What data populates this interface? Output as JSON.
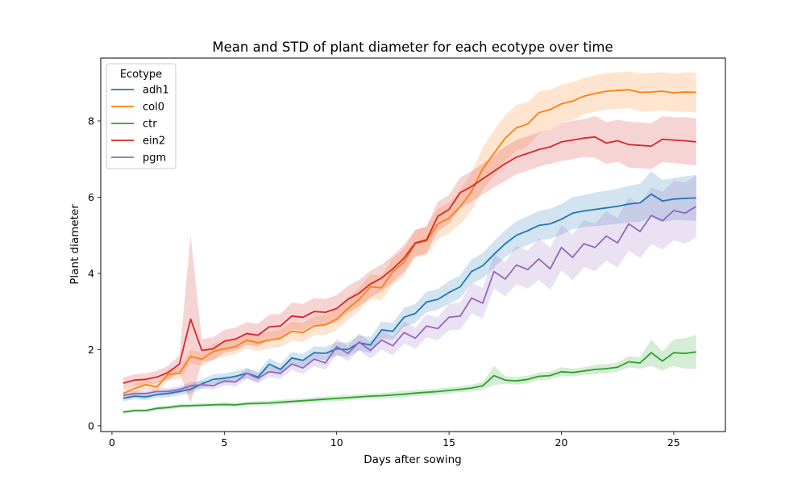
{
  "chart_data": {
    "type": "line",
    "title": "Mean and STD of plant diameter for each ecotype over time",
    "xlabel": "Days after sowing",
    "ylabel": "Plant diameter",
    "xlim": [
      -0.5,
      27.3
    ],
    "ylim": [
      -0.15,
      9.65
    ],
    "x_ticks": [
      0,
      5,
      10,
      15,
      20,
      25
    ],
    "y_ticks": [
      0,
      2,
      4,
      6,
      8
    ],
    "grid": false,
    "legend": {
      "title": "Ecotype",
      "placement": "top-left"
    },
    "x": [
      0.5,
      1,
      1.5,
      2,
      2.5,
      3,
      3.5,
      4,
      4.5,
      5,
      5.5,
      6,
      6.5,
      7,
      7.5,
      8,
      8.5,
      9,
      9.5,
      10,
      10.5,
      11,
      11.5,
      12,
      12.5,
      13,
      13.5,
      14,
      14.5,
      15,
      15.5,
      16,
      16.5,
      17,
      17.5,
      18,
      18.5,
      19,
      19.5,
      20,
      20.5,
      21,
      21.5,
      22,
      22.5,
      23,
      23.5,
      24,
      24.5,
      25,
      25.5,
      26
    ],
    "series": [
      {
        "name": "adh1",
        "color": "#1f77b4",
        "values": [
          0.72,
          0.78,
          0.76,
          0.82,
          0.85,
          0.9,
          0.96,
          1.1,
          1.22,
          1.25,
          1.3,
          1.38,
          1.28,
          1.62,
          1.48,
          1.78,
          1.72,
          1.92,
          1.9,
          2.02,
          2.0,
          2.18,
          2.12,
          2.52,
          2.48,
          2.85,
          2.95,
          3.25,
          3.32,
          3.5,
          3.65,
          4.05,
          4.2,
          4.5,
          4.78,
          5.0,
          5.12,
          5.26,
          5.3,
          5.42,
          5.58,
          5.64,
          5.68,
          5.72,
          5.76,
          5.82,
          5.85,
          6.08,
          5.9,
          5.95,
          5.97,
          5.98
        ],
        "std": [
          0.08,
          0.08,
          0.09,
          0.09,
          0.1,
          0.1,
          0.12,
          0.12,
          0.13,
          0.13,
          0.14,
          0.14,
          0.14,
          0.15,
          0.15,
          0.16,
          0.16,
          0.17,
          0.17,
          0.18,
          0.18,
          0.2,
          0.2,
          0.22,
          0.22,
          0.25,
          0.25,
          0.27,
          0.27,
          0.3,
          0.3,
          0.32,
          0.33,
          0.35,
          0.35,
          0.37,
          0.38,
          0.38,
          0.4,
          0.4,
          0.42,
          0.42,
          0.44,
          0.45,
          0.46,
          0.48,
          0.5,
          0.6,
          0.55,
          0.55,
          0.58,
          0.6
        ]
      },
      {
        "name": "col0",
        "color": "#ff7f0e",
        "values": [
          0.85,
          0.98,
          1.08,
          1.02,
          1.35,
          1.38,
          1.82,
          1.75,
          1.95,
          2.02,
          2.08,
          2.25,
          2.18,
          2.25,
          2.3,
          2.48,
          2.45,
          2.62,
          2.65,
          2.8,
          3.08,
          3.32,
          3.65,
          3.62,
          4.05,
          4.3,
          4.78,
          4.85,
          5.3,
          5.45,
          5.75,
          6.15,
          6.75,
          7.15,
          7.55,
          7.82,
          7.92,
          8.22,
          8.3,
          8.45,
          8.52,
          8.65,
          8.72,
          8.78,
          8.8,
          8.82,
          8.75,
          8.76,
          8.78,
          8.74,
          8.76,
          8.75
        ],
        "std": [
          0.1,
          0.12,
          0.12,
          0.13,
          0.15,
          0.15,
          0.17,
          0.18,
          0.2,
          0.2,
          0.2,
          0.22,
          0.22,
          0.22,
          0.23,
          0.25,
          0.25,
          0.25,
          0.26,
          0.28,
          0.3,
          0.3,
          0.32,
          0.32,
          0.35,
          0.35,
          0.35,
          0.38,
          0.4,
          0.4,
          0.45,
          0.5,
          0.55,
          0.6,
          0.6,
          0.6,
          0.58,
          0.55,
          0.52,
          0.5,
          0.5,
          0.48,
          0.48,
          0.48,
          0.48,
          0.48,
          0.5,
          0.5,
          0.5,
          0.5,
          0.52,
          0.52
        ]
      },
      {
        "name": "ctr",
        "color": "#2ca02c",
        "values": [
          0.36,
          0.4,
          0.4,
          0.46,
          0.48,
          0.52,
          0.53,
          0.54,
          0.55,
          0.56,
          0.55,
          0.58,
          0.59,
          0.6,
          0.62,
          0.64,
          0.66,
          0.68,
          0.7,
          0.72,
          0.74,
          0.76,
          0.78,
          0.79,
          0.81,
          0.83,
          0.86,
          0.88,
          0.9,
          0.93,
          0.96,
          0.99,
          1.05,
          1.32,
          1.2,
          1.18,
          1.22,
          1.3,
          1.32,
          1.42,
          1.4,
          1.44,
          1.48,
          1.5,
          1.54,
          1.68,
          1.65,
          1.92,
          1.7,
          1.92,
          1.9,
          1.94
        ],
        "std": [
          0.04,
          0.04,
          0.04,
          0.05,
          0.05,
          0.05,
          0.05,
          0.05,
          0.05,
          0.06,
          0.06,
          0.06,
          0.06,
          0.06,
          0.06,
          0.06,
          0.06,
          0.07,
          0.07,
          0.07,
          0.07,
          0.07,
          0.07,
          0.07,
          0.08,
          0.08,
          0.08,
          0.08,
          0.08,
          0.08,
          0.08,
          0.09,
          0.1,
          0.25,
          0.1,
          0.1,
          0.1,
          0.1,
          0.1,
          0.12,
          0.1,
          0.1,
          0.12,
          0.12,
          0.12,
          0.15,
          0.15,
          0.35,
          0.25,
          0.35,
          0.4,
          0.45
        ]
      },
      {
        "name": "ein2",
        "color": "#d62728",
        "values": [
          1.12,
          1.2,
          1.22,
          1.28,
          1.4,
          1.62,
          2.8,
          1.98,
          2.02,
          2.22,
          2.28,
          2.42,
          2.38,
          2.6,
          2.62,
          2.88,
          2.85,
          3.0,
          2.98,
          3.08,
          3.32,
          3.48,
          3.72,
          3.88,
          4.12,
          4.4,
          4.8,
          4.88,
          5.5,
          5.68,
          6.12,
          6.28,
          6.48,
          6.68,
          6.88,
          7.05,
          7.15,
          7.25,
          7.32,
          7.45,
          7.5,
          7.55,
          7.58,
          7.42,
          7.48,
          7.38,
          7.36,
          7.34,
          7.52,
          7.5,
          7.48,
          7.45
        ],
        "std": [
          0.15,
          0.15,
          0.16,
          0.16,
          0.18,
          0.22,
          2.2,
          0.3,
          0.3,
          0.3,
          0.3,
          0.3,
          0.3,
          0.32,
          0.32,
          0.35,
          0.35,
          0.35,
          0.35,
          0.35,
          0.35,
          0.35,
          0.35,
          0.35,
          0.35,
          0.35,
          0.35,
          0.35,
          0.38,
          0.38,
          0.4,
          0.4,
          0.4,
          0.42,
          0.45,
          0.45,
          0.45,
          0.45,
          0.45,
          0.5,
          0.5,
          0.5,
          0.55,
          0.55,
          0.55,
          0.6,
          0.6,
          0.6,
          0.6,
          0.6,
          0.62,
          0.62
        ]
      },
      {
        "name": "pgm",
        "color": "#9467bd",
        "values": [
          0.8,
          0.85,
          0.85,
          0.9,
          0.9,
          0.95,
          1.05,
          1.08,
          1.05,
          1.18,
          1.15,
          1.38,
          1.25,
          1.42,
          1.38,
          1.62,
          1.52,
          1.75,
          1.65,
          2.08,
          1.9,
          2.2,
          1.98,
          2.25,
          2.1,
          2.45,
          2.3,
          2.62,
          2.55,
          2.85,
          2.88,
          3.35,
          3.22,
          4.05,
          3.85,
          4.22,
          4.1,
          4.38,
          4.12,
          4.68,
          4.42,
          4.78,
          4.68,
          4.98,
          4.8,
          5.3,
          5.1,
          5.52,
          5.38,
          5.65,
          5.58,
          5.76
        ],
        "std": [
          0.08,
          0.08,
          0.08,
          0.09,
          0.09,
          0.09,
          0.1,
          0.1,
          0.1,
          0.12,
          0.12,
          0.13,
          0.13,
          0.14,
          0.14,
          0.16,
          0.16,
          0.18,
          0.18,
          0.2,
          0.2,
          0.22,
          0.22,
          0.25,
          0.25,
          0.28,
          0.28,
          0.3,
          0.3,
          0.35,
          0.35,
          0.4,
          0.4,
          0.45,
          0.45,
          0.5,
          0.5,
          0.55,
          0.55,
          0.6,
          0.6,
          0.62,
          0.62,
          0.65,
          0.65,
          0.7,
          0.7,
          0.75,
          0.75,
          0.78,
          0.8,
          0.82
        ]
      }
    ]
  }
}
